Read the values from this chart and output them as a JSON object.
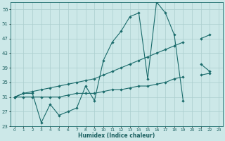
{
  "bg_color": "#cce8e8",
  "grid_color": "#aacece",
  "line_color": "#1a6b6b",
  "xlabel": "Humidex (Indice chaleur)",
  "x_values": [
    0,
    1,
    2,
    3,
    4,
    5,
    6,
    7,
    8,
    9,
    10,
    11,
    12,
    13,
    14,
    15,
    16,
    17,
    18,
    19,
    20,
    21,
    22,
    23
  ],
  "series_jagged": [
    31,
    32,
    32,
    24,
    29,
    26,
    27,
    28,
    34,
    30,
    41,
    46,
    49,
    53,
    54,
    36,
    57,
    54,
    48,
    30,
    null,
    40,
    38,
    null
  ],
  "series_trend_high": [
    31,
    32,
    32.5,
    33,
    33.5,
    34,
    34.5,
    35,
    35.5,
    36,
    37,
    38,
    39,
    40,
    41,
    42,
    43,
    44,
    45,
    46,
    null,
    47,
    48,
    null
  ],
  "series_trend_low": [
    31,
    31,
    31,
    31,
    31,
    31,
    31.5,
    32,
    32,
    32,
    32.5,
    33,
    33,
    33.5,
    34,
    34,
    34.5,
    35,
    36,
    36.5,
    null,
    37,
    37.5,
    null
  ],
  "ylim_min": 23,
  "ylim_max": 57,
  "xlim_min": -0.5,
  "xlim_max": 23.5,
  "yticks": [
    23,
    27,
    31,
    35,
    39,
    43,
    47,
    51,
    55
  ],
  "xticks": [
    0,
    1,
    2,
    3,
    4,
    5,
    6,
    7,
    8,
    9,
    10,
    11,
    12,
    13,
    14,
    15,
    16,
    17,
    18,
    19,
    20,
    21,
    22,
    23
  ],
  "marker_size": 2.2,
  "linewidth": 0.8
}
